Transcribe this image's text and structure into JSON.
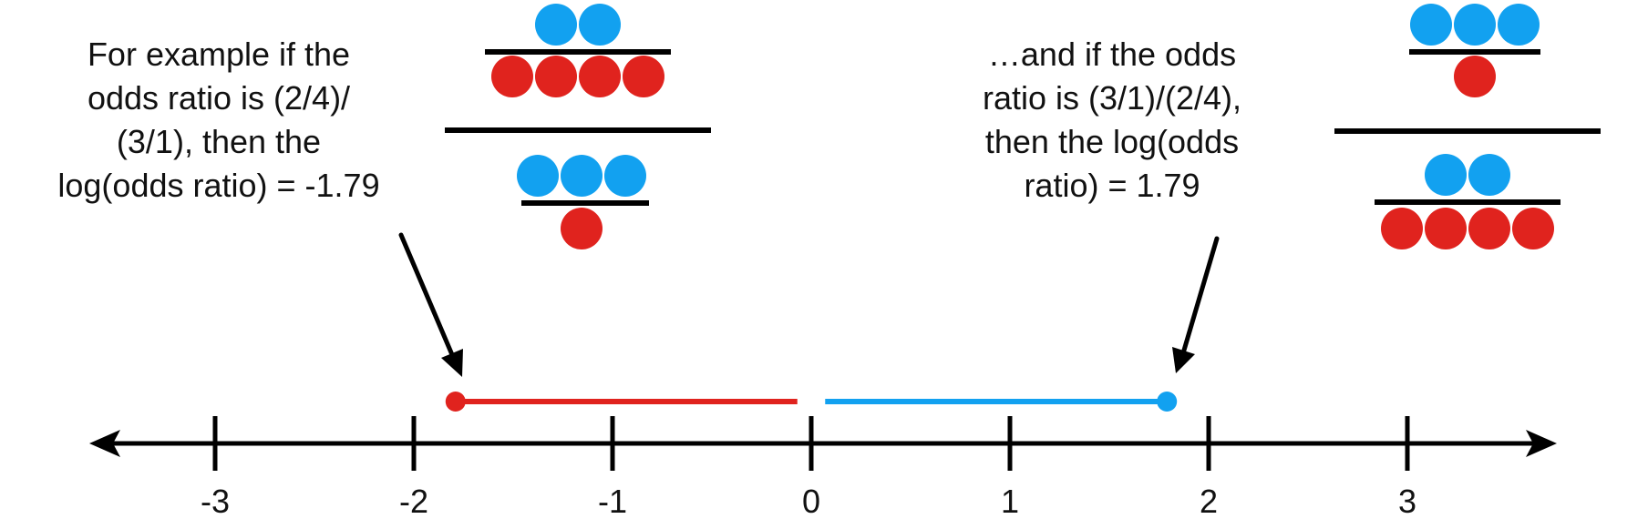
{
  "colors": {
    "red": "#e0231e",
    "blue": "#12a1f0",
    "ink": "#000000",
    "background": "#ffffff"
  },
  "captions": {
    "left": {
      "lines": [
        "For example if the",
        "odds ratio is (2/4)/",
        "(3/1), then the",
        "log(odds ratio) = -1.79"
      ]
    },
    "right": {
      "lines": [
        "…and if the odds",
        "ratio is (3/1)/(2/4),",
        "then the log(odds",
        "ratio) = 1.79"
      ]
    }
  },
  "fractions": {
    "left": {
      "top": {
        "blue": 2,
        "red": 4
      },
      "bottom": {
        "blue": 3,
        "red": 1
      }
    },
    "right": {
      "top": {
        "blue": 3,
        "red": 1
      },
      "bottom": {
        "blue": 2,
        "red": 4
      }
    }
  },
  "number_line": {
    "ticks": [
      "-3",
      "-2",
      "-1",
      "0",
      "1",
      "2",
      "3"
    ],
    "tick_values": [
      -3,
      -2,
      -1,
      0,
      1,
      2,
      3
    ],
    "negative_segment": {
      "from": -1.79,
      "to": -0.07,
      "color": "#e0231e"
    },
    "positive_segment": {
      "from": 0.07,
      "to": 1.79,
      "color": "#12a1f0"
    }
  }
}
